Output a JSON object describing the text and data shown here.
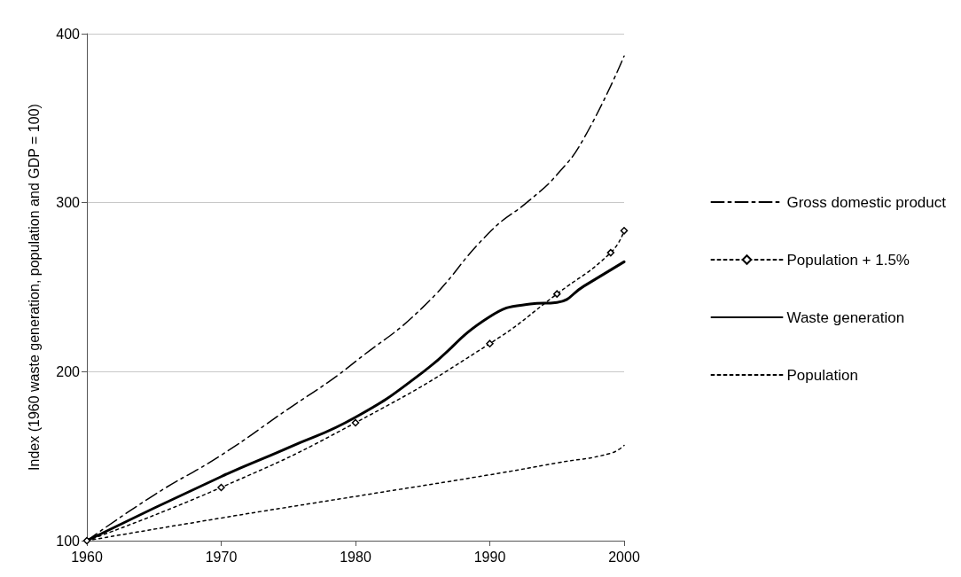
{
  "chart_data": {
    "type": "line",
    "ylabel": "Index (1960 waste generation, population and GDP = 100)",
    "xlim": [
      1960,
      2000
    ],
    "xticks": [
      1960,
      1970,
      1980,
      1990,
      2000
    ],
    "ylim": [
      100,
      400
    ],
    "yticks": [
      100,
      200,
      300,
      400
    ],
    "grid": "y",
    "legend": "right",
    "series": [
      {
        "name": "Gross domestic product",
        "color": "#000000",
        "line_style": "dashed",
        "marker": "none",
        "x": [
          1960,
          1965,
          1970,
          1975,
          1978,
          1980,
          1985,
          1990,
          1993,
          1995,
          1997,
          2000
        ],
        "values": [
          100,
          127,
          150.6,
          178,
          194,
          206,
          238,
          282.6,
          301.7,
          316.6,
          338,
          386.8
        ]
      },
      {
        "name": "Population + 1.5%",
        "color": "#000000",
        "line_style": "dotted",
        "marker": "diamond",
        "x": [
          1960,
          1970,
          1980,
          1990,
          1995,
          1999,
          2000
        ],
        "values": [
          100,
          131.5,
          169.8,
          216.6,
          246,
          270.4,
          283.4
        ]
      },
      {
        "name": "Waste generation",
        "color": "#000000",
        "line_style": "solid",
        "marker": "none",
        "x": [
          1960,
          1970,
          1975,
          1980,
          1985,
          1990,
          1993,
          1995,
          1997,
          2000
        ],
        "values": [
          100,
          137.9,
          155,
          173,
          199.6,
          232.6,
          240,
          241,
          250.6,
          265
        ]
      },
      {
        "name": "Population",
        "color": "#000000",
        "line_style": "dotted",
        "marker": "none",
        "x": [
          1960,
          1970,
          1980,
          1990,
          1995,
          1999,
          2000
        ],
        "values": [
          100,
          113.4,
          126.2,
          139,
          146,
          151.7,
          156.4
        ]
      }
    ]
  }
}
